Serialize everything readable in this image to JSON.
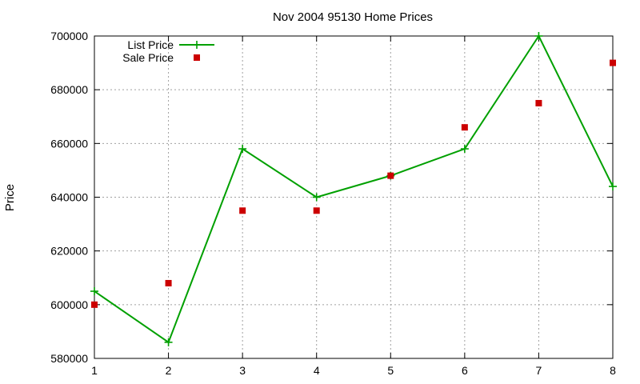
{
  "chart_data": {
    "type": "line",
    "title": "Nov 2004 95130 Home Prices",
    "xlabel": "",
    "ylabel": "Price",
    "x": [
      1,
      2,
      3,
      4,
      5,
      6,
      7,
      8
    ],
    "xlim": [
      1,
      8
    ],
    "ylim": [
      580000,
      700000
    ],
    "x_ticks": [
      "1",
      "2",
      "3",
      "4",
      "5",
      "6",
      "7",
      "8"
    ],
    "y_ticks": [
      "580000",
      "600000",
      "620000",
      "640000",
      "660000",
      "680000",
      "700000"
    ],
    "grid": true,
    "legend_position": "top-left",
    "series": [
      {
        "name": "List Price",
        "style": "lines+points",
        "marker": "plus",
        "color": "#00a000",
        "values": [
          605000,
          586000,
          658000,
          640000,
          648000,
          658000,
          700000,
          644000
        ]
      },
      {
        "name": "Sale Price",
        "style": "points",
        "marker": "square",
        "color": "#cc0000",
        "values": [
          600000,
          608000,
          635000,
          635000,
          648000,
          666000,
          675000,
          690000
        ]
      }
    ]
  }
}
